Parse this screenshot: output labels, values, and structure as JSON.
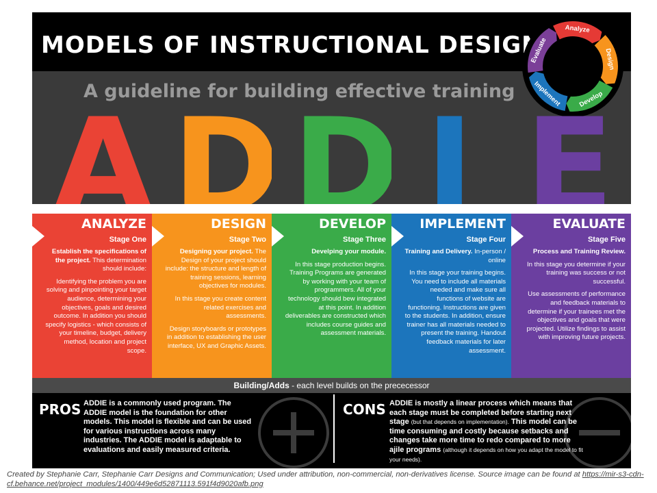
{
  "header": {
    "title": "MODELS OF INSTRUCTIONAL DESIGN",
    "subtitle": "A guideline for building effective training"
  },
  "cycle": {
    "segments": [
      {
        "label": "Analyze",
        "color": "#e53a35"
      },
      {
        "label": "Design",
        "color": "#f7941d"
      },
      {
        "label": "Develop",
        "color": "#3aab49"
      },
      {
        "label": "Implement",
        "color": "#1c75bc"
      },
      {
        "label": "Evaluate",
        "color": "#7b3f98"
      }
    ]
  },
  "letters": [
    {
      "char": "A",
      "color": "#ea4335"
    },
    {
      "char": "D",
      "color": "#f7941d"
    },
    {
      "char": "D",
      "color": "#3aab49"
    },
    {
      "char": "I",
      "color": "#1c75bc"
    },
    {
      "char": "E",
      "color": "#6b3fa0"
    }
  ],
  "stages": [
    {
      "name": "ANALYZE",
      "stage": "Stage One",
      "color": "#ea4335",
      "lead_bold": "Establish the specifications of the project.",
      "lead_rest": " This determination  should include:",
      "paragraphs": [
        "Identifying the problem you are solving and pinpointing your target audience, determining your objectives, goals and desired outcome. In addition you should specify logistics - which consists of your timeline, budget, delivery method, location and project scope."
      ]
    },
    {
      "name": "DESIGN",
      "stage": "Stage Two",
      "color": "#f7941d",
      "lead_bold": "Designing your project.",
      "lead_rest": " The Design of your project should include: the structure and length of training sessions, learning objectives for modules.",
      "paragraphs": [
        "In this stage you create content related exercises and assessments.",
        "Design storyboards or prototypes in addition to establishing the user interface, UX  and Graphic Assets."
      ]
    },
    {
      "name": "DEVELOP",
      "stage": "Stage Three",
      "color": "#3aab49",
      "lead_bold": "Develping your module.",
      "lead_rest": "",
      "paragraphs": [
        "In this stage production begins. Training Programs are generated by working with your team of programmers. All of your technology should bew integrated at this point. In addition deliverables are constructed which includes course guides and assessment materials."
      ]
    },
    {
      "name": "IMPLEMENT",
      "stage": "Stage Four",
      "color": "#1c75bc",
      "lead_bold": "Training and Delivery.",
      "lead_rest": " In-person / online",
      "paragraphs": [
        "In this stage your training begins. You need to include all materials needed and make sure all functions of website are functioning. Instructions are given to the students. In addition, ensure trainer has all materials needed to present the training. Handout feedback materials for later assessment."
      ]
    },
    {
      "name": "EVALUATE",
      "stage": "Stage Five",
      "color": "#6b3fa0",
      "lead_bold": "Process and Training Review.",
      "lead_rest": "",
      "paragraphs": [
        "In this stage you determine if your training was success or not successful.",
        "Use assessments of performance and feedback materials to determine if your trainees met the objectives and goals that were projected. Utilize findings to assist with improving future projects."
      ]
    }
  ],
  "building": {
    "bold": "Building/Adds",
    "rest": " - each level builds on the prececessor"
  },
  "pros": {
    "title": "PROS",
    "text": "ADDIE is a commonly used program. The ADDIE model is the foundation for other models. This model is flexible and can be used for various instructions across many industries. The ADDIE model is adaptable to evaluations and easily measured criteria."
  },
  "cons": {
    "title": "CONS",
    "text_a": "ADDIE is mostly a linear process which means that each stage must be completed before starting next stage ",
    "note_a": "(but that depends on implementation).",
    "text_b": " This model can be time consuming and costly because setbacks and changes take more time to redo compared to more ajile programs ",
    "note_b": "(although it depends on how you adapt the model to fit your needs)."
  },
  "credit": {
    "text": "Created by Stephanie Carr, Stephanie Carr Designs and Communication; Used under attribution, non-commercial, non-derivatives license. Source image can be found at ",
    "link": "https://mir-s3-cdn-cf.behance.net/project_modules/1400/449e6d52871113.591f4d9020afb.png"
  }
}
